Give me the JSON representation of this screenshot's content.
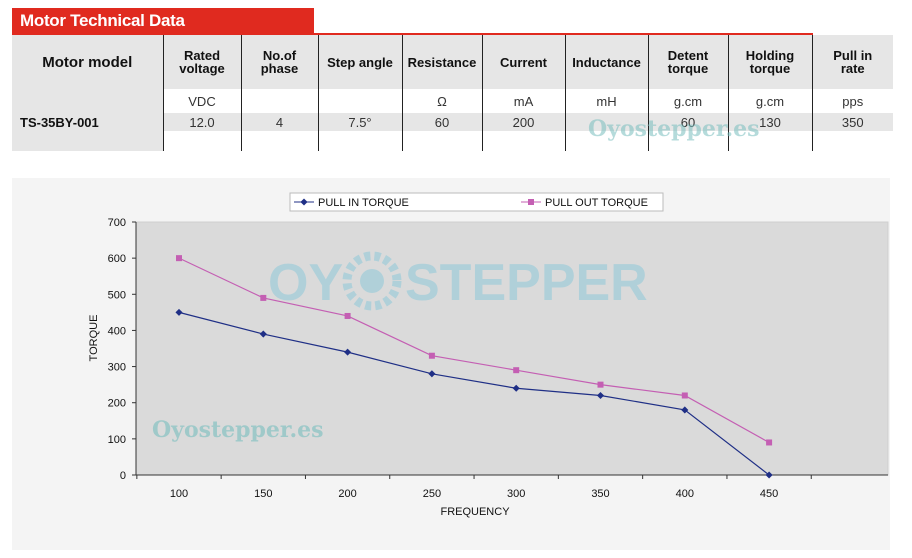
{
  "header": {
    "title": "Motor Technical Data"
  },
  "table": {
    "columns": [
      "Motor model",
      "Rated voltage",
      "No.of phase",
      "Step angle",
      "Resistance",
      "Current",
      "Inductance",
      "Detent torque",
      "Holding torque",
      "Pull in rate"
    ],
    "units": [
      "",
      "VDC",
      "",
      "",
      "Ω",
      "mA",
      "mH",
      "g.cm",
      "g.cm",
      "pps"
    ],
    "rows": [
      [
        "TS-35BY-001",
        "12.0",
        "4",
        "7.5°",
        "60",
        "200",
        "",
        "60",
        "130",
        "350"
      ]
    ]
  },
  "watermarks": {
    "small_1": "Oyostepper.es",
    "small_2": "Oyostepper.es",
    "logo_left": "OY",
    "logo_right": "STEPPER"
  },
  "chart_data": {
    "type": "line",
    "xlabel": "FREQUENCY",
    "ylabel": "TORQUE",
    "x": [
      100,
      150,
      200,
      250,
      300,
      350,
      400,
      450
    ],
    "ylim": [
      0,
      700
    ],
    "yticks": [
      0,
      100,
      200,
      300,
      400,
      500,
      600,
      700
    ],
    "legend_position": "top",
    "grid": false,
    "series": [
      {
        "name": "PULL IN TORQUE",
        "values": [
          450,
          390,
          340,
          280,
          240,
          220,
          180,
          0
        ],
        "color": "#1f2f86",
        "marker": "diamond"
      },
      {
        "name": "PULL OUT TORQUE",
        "values": [
          600,
          490,
          440,
          330,
          290,
          250,
          220,
          90
        ],
        "color": "#c45fb3",
        "marker": "square"
      }
    ]
  }
}
